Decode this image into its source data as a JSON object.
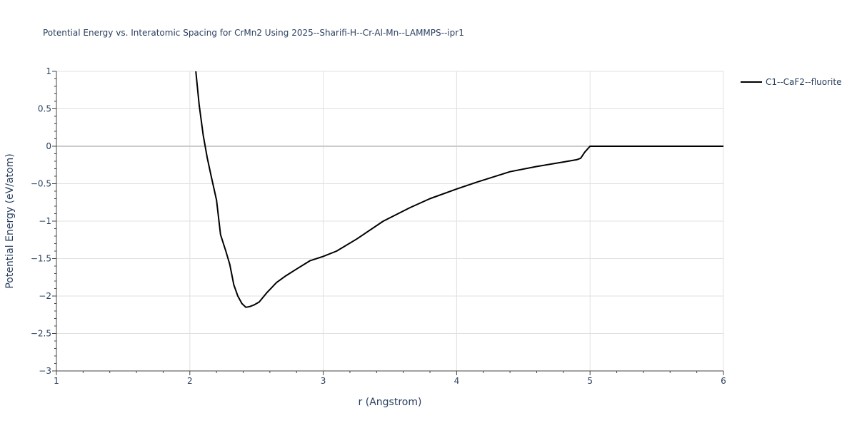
{
  "chart_data": {
    "type": "line",
    "title": "Potential Energy vs. Interatomic Spacing for CrMn2 Using 2025--Sharifi-H--Cr-Al-Mn--LAMMPS--ipr1",
    "xlabel": "r (Angstrom)",
    "ylabel": "Potential Energy (eV/atom)",
    "xlim": [
      1,
      6
    ],
    "ylim": [
      -3,
      1
    ],
    "x_ticks": [
      1,
      2,
      3,
      4,
      5,
      6
    ],
    "x_tick_labels": [
      "1",
      "2",
      "3",
      "4",
      "5",
      "6"
    ],
    "y_ticks": [
      -3,
      -2.5,
      -2,
      -1.5,
      -1,
      -0.5,
      0,
      0.5,
      1
    ],
    "y_tick_labels": [
      "−3",
      "−2.5",
      "−2",
      "−1.5",
      "−1",
      "−0.5",
      "0",
      "0.5",
      "1"
    ],
    "grid": true,
    "legend_position": "top-right",
    "series": [
      {
        "name": "C1--CaF2--fluorite",
        "color": "#000000",
        "x": [
          2.045,
          2.07,
          2.1,
          2.13,
          2.16,
          2.2,
          2.23,
          2.27,
          2.3,
          2.33,
          2.36,
          2.39,
          2.42,
          2.45,
          2.48,
          2.52,
          2.58,
          2.65,
          2.72,
          2.8,
          2.9,
          3.0,
          3.1,
          3.25,
          3.45,
          3.65,
          3.8,
          4.0,
          4.15,
          4.4,
          4.6,
          4.8,
          4.9,
          4.93,
          4.96,
          5.0,
          5.2,
          5.5,
          5.8,
          6.0
        ],
        "y": [
          1.0,
          0.55,
          0.15,
          -0.15,
          -0.4,
          -0.72,
          -1.18,
          -1.4,
          -1.58,
          -1.85,
          -2.0,
          -2.1,
          -2.15,
          -2.14,
          -2.12,
          -2.08,
          -1.95,
          -1.82,
          -1.73,
          -1.64,
          -1.53,
          -1.47,
          -1.4,
          -1.24,
          -1.0,
          -0.82,
          -0.7,
          -0.57,
          -0.48,
          -0.34,
          -0.27,
          -0.21,
          -0.18,
          -0.16,
          -0.08,
          0.0,
          0.0,
          0.0,
          0.0,
          0.0
        ]
      }
    ]
  }
}
